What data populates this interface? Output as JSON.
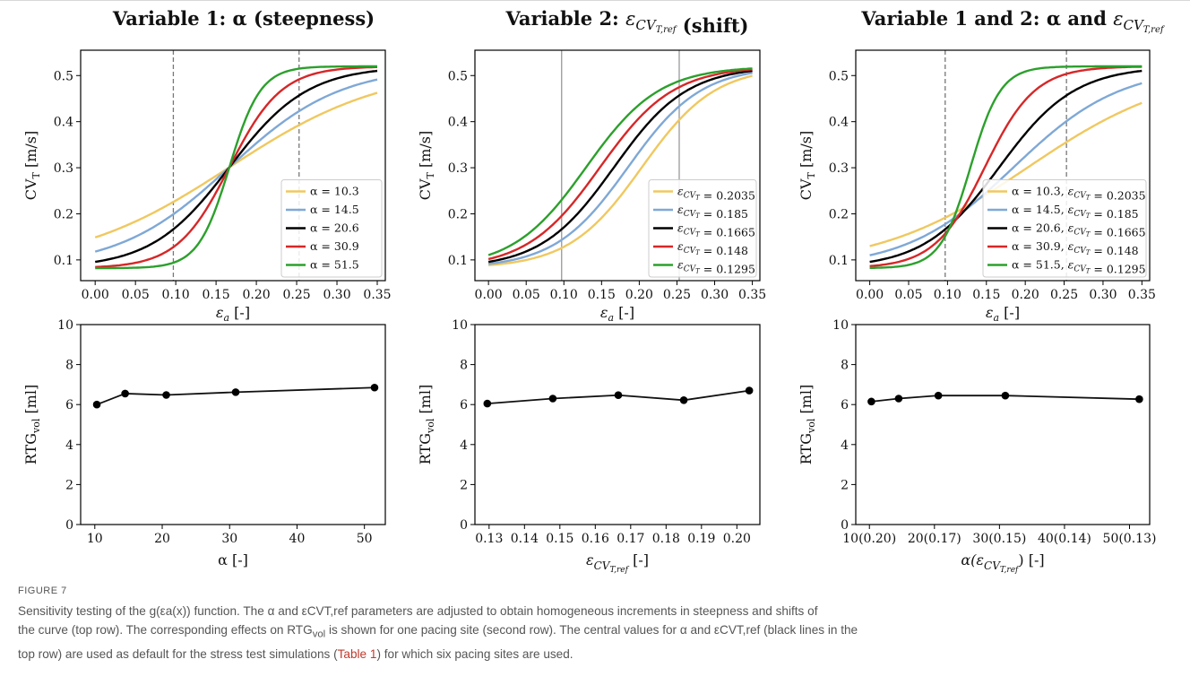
{
  "figure_label": "FIGURE 7",
  "caption": {
    "text_a": "Sensitivity testing of the g(εa(x)) function. The α and εCVT,ref parameters are adjusted to obtain homogeneous increments in steepness and shifts of",
    "text_b": "the curve (top row). The corresponding effects on RTG",
    "text_b_sub": "vol",
    "text_b2": " is shown for one pacing site (second row). The central values for α and εCVT,ref (black lines in the",
    "text_c": "top row) are used as default for the stress test simulations (",
    "text_c_link": "Table 1",
    "text_c2": ") for which six pacing sites are used."
  },
  "panel_titles": [
    "Variable  1: α (steepness)",
    "Variable  2: εCVT,ref (shift)",
    "Variable  1 and 2: α and εCVT,ref"
  ],
  "chart_data": [
    {
      "type": "line",
      "title": "Variable  1: α (steepness)",
      "xlabel": "εa [-]",
      "ylabel": "CVT [m/s]",
      "xlim": [
        -0.018,
        0.36
      ],
      "ylim": [
        0.055,
        0.555
      ],
      "xticks": [
        0.0,
        0.05,
        0.1,
        0.15,
        0.2,
        0.25,
        0.3,
        0.35
      ],
      "xtick_labels": [
        "0.00",
        "0.05",
        "0.10",
        "0.15",
        "0.20",
        "0.25",
        "0.30",
        "0.35"
      ],
      "yticks": [
        0.1,
        0.2,
        0.3,
        0.4,
        0.5
      ],
      "ytick_labels": [
        "0.1",
        "0.2",
        "0.3",
        "0.4",
        "0.5"
      ],
      "vlines": [
        0.097,
        0.253
      ],
      "curve_min": 0.082,
      "curve_max": 0.52,
      "legend_position": "lower-right",
      "series": [
        {
          "name": "α = 10.3",
          "alpha": 10.3,
          "shift": 0.1665,
          "color": "#f0c860"
        },
        {
          "name": "α = 14.5",
          "alpha": 14.5,
          "shift": 0.1665,
          "color": "#7fa8d6"
        },
        {
          "name": "α = 20.6",
          "alpha": 20.6,
          "shift": 0.1665,
          "color": "#000000"
        },
        {
          "name": "α = 30.9",
          "alpha": 30.9,
          "shift": 0.1665,
          "color": "#d62728"
        },
        {
          "name": "α = 51.5",
          "alpha": 51.5,
          "shift": 0.1665,
          "color": "#2ca02c"
        }
      ]
    },
    {
      "type": "line",
      "title": "Variable  2: εCVT,ref (shift)",
      "xlabel": "εa [-]",
      "ylabel": "CVT [m/s]",
      "xlim": [
        -0.018,
        0.36
      ],
      "ylim": [
        0.055,
        0.555
      ],
      "xticks": [
        0.0,
        0.05,
        0.1,
        0.15,
        0.2,
        0.25,
        0.3,
        0.35
      ],
      "xtick_labels": [
        "0.00",
        "0.05",
        "0.10",
        "0.15",
        "0.20",
        "0.25",
        "0.30",
        "0.35"
      ],
      "yticks": [
        0.1,
        0.2,
        0.3,
        0.4,
        0.5
      ],
      "ytick_labels": [
        "0.1",
        "0.2",
        "0.3",
        "0.4",
        "0.5"
      ],
      "vlines": [
        0.097,
        0.253
      ],
      "curve_min": 0.082,
      "curve_max": 0.52,
      "legend_position": "lower-right",
      "series": [
        {
          "name": "εCVT = 0.2035",
          "alpha": 20.6,
          "shift": 0.2035,
          "color": "#f0c860"
        },
        {
          "name": "εCVT = 0.185",
          "alpha": 20.6,
          "shift": 0.185,
          "color": "#7fa8d6"
        },
        {
          "name": "εCVT = 0.1665",
          "alpha": 20.6,
          "shift": 0.1665,
          "color": "#000000"
        },
        {
          "name": "εCVT = 0.148",
          "alpha": 20.6,
          "shift": 0.148,
          "color": "#d62728"
        },
        {
          "name": "εCVT = 0.1295",
          "alpha": 20.6,
          "shift": 0.1295,
          "color": "#2ca02c"
        }
      ]
    },
    {
      "type": "line",
      "title": "Variable  1 and 2: α and εCVT,ref",
      "xlabel": "εa [-]",
      "ylabel": "CVT [m/s]",
      "xlim": [
        -0.018,
        0.36
      ],
      "ylim": [
        0.055,
        0.555
      ],
      "xticks": [
        0.0,
        0.05,
        0.1,
        0.15,
        0.2,
        0.25,
        0.3,
        0.35
      ],
      "xtick_labels": [
        "0.00",
        "0.05",
        "0.10",
        "0.15",
        "0.20",
        "0.25",
        "0.30",
        "0.35"
      ],
      "yticks": [
        0.1,
        0.2,
        0.3,
        0.4,
        0.5
      ],
      "ytick_labels": [
        "0.1",
        "0.2",
        "0.3",
        "0.4",
        "0.5"
      ],
      "vlines": [
        0.097,
        0.253
      ],
      "curve_min": 0.082,
      "curve_max": 0.52,
      "legend_position": "lower-right",
      "series": [
        {
          "name": "α = 10.3, εCVT = 0.2035",
          "alpha": 10.3,
          "shift": 0.2035,
          "color": "#f0c860"
        },
        {
          "name": "α = 14.5, εCVT = 0.185",
          "alpha": 14.5,
          "shift": 0.185,
          "color": "#7fa8d6"
        },
        {
          "name": "α = 20.6, εCVT = 0.1665",
          "alpha": 20.6,
          "shift": 0.1665,
          "color": "#000000"
        },
        {
          "name": "α = 30.9, εCVT = 0.148",
          "alpha": 30.9,
          "shift": 0.148,
          "color": "#d62728"
        },
        {
          "name": "α = 51.5, εCVT = 0.1295",
          "alpha": 51.5,
          "shift": 0.1295,
          "color": "#2ca02c"
        }
      ]
    },
    {
      "type": "line",
      "xlabel": "α [-]",
      "ylabel": "RTGvol [ml]",
      "xlim": [
        7.9,
        53.1
      ],
      "ylim": [
        0,
        10
      ],
      "xticks": [
        10,
        20,
        30,
        40,
        50
      ],
      "xtick_labels": [
        "10",
        "20",
        "30",
        "40",
        "50"
      ],
      "yticks": [
        0,
        2,
        4,
        6,
        8,
        10
      ],
      "ytick_labels": [
        "0",
        "2",
        "4",
        "6",
        "8",
        "10"
      ],
      "x": [
        10.3,
        14.5,
        20.6,
        30.9,
        51.5
      ],
      "y": [
        6.0,
        6.55,
        6.48,
        6.62,
        6.85
      ]
    },
    {
      "type": "line",
      "xlabel": "εCVT,ref [-]",
      "ylabel": "RTGvol [ml]",
      "xlim": [
        0.126,
        0.2065
      ],
      "ylim": [
        0,
        10
      ],
      "xticks": [
        0.13,
        0.14,
        0.15,
        0.16,
        0.17,
        0.18,
        0.19,
        0.2
      ],
      "xtick_labels": [
        "0.13",
        "0.14",
        "0.15",
        "0.16",
        "0.17",
        "0.18",
        "0.19",
        "0.20"
      ],
      "yticks": [
        0,
        2,
        4,
        6,
        8,
        10
      ],
      "ytick_labels": [
        "0",
        "2",
        "4",
        "6",
        "8",
        "10"
      ],
      "x": [
        0.1295,
        0.148,
        0.1665,
        0.185,
        0.2035
      ],
      "y": [
        6.05,
        6.3,
        6.47,
        6.22,
        6.7
      ]
    },
    {
      "type": "line",
      "xlabel": "α(εCVT,ref) [-]",
      "ylabel": "RTGvol [ml]",
      "xlim": [
        7.9,
        53.1
      ],
      "ylim": [
        0,
        10
      ],
      "xticks": [
        10,
        20,
        30,
        40,
        50
      ],
      "xtick_labels": [
        "10(0.20)",
        "20(0.17)",
        "30(0.15)",
        "40(0.14)",
        "50(0.13)"
      ],
      "yticks": [
        0,
        2,
        4,
        6,
        8,
        10
      ],
      "ytick_labels": [
        "0",
        "2",
        "4",
        "6",
        "8",
        "10"
      ],
      "x": [
        10.3,
        14.5,
        20.6,
        30.9,
        51.5
      ],
      "y": [
        6.15,
        6.3,
        6.45,
        6.45,
        6.27
      ]
    }
  ]
}
